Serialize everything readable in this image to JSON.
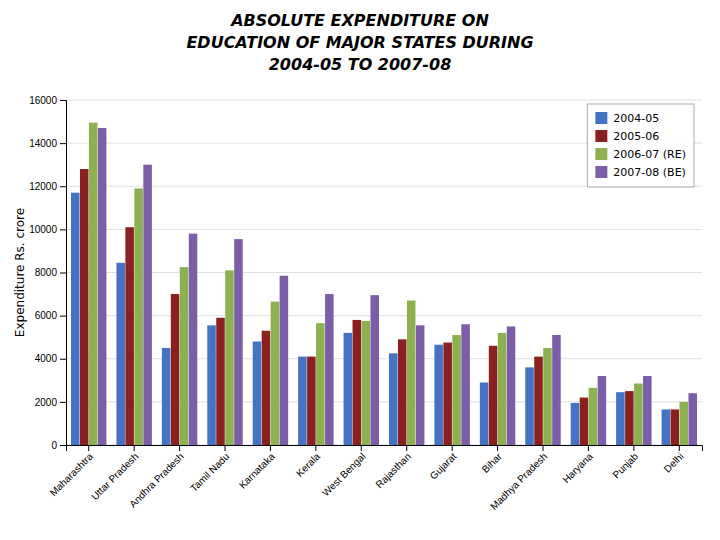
{
  "chart_data": {
    "type": "bar",
    "title": [
      "ABSOLUTE EXPENDITURE ON",
      "EDUCATION OF MAJOR STATES DURING",
      "2004-05 TO 2007-08"
    ],
    "ylabel": "Expenditure Rs. crore",
    "categories": [
      "Maharashtra",
      "Uttar Pradesh",
      "Andhra Pradesh",
      "Tamil Nadu",
      "Karnataka",
      "Kerala",
      "West Bengal",
      "Rajasthan",
      "Gujarat",
      "Bihar",
      "Madhya Pradesh",
      "Haryana",
      "Punjab",
      "Delhi"
    ],
    "series": [
      {
        "name": "2004-05",
        "color": "#4472C4",
        "values": [
          11700,
          8450,
          4500,
          5550,
          4800,
          4100,
          5200,
          4250,
          4650,
          2900,
          3600,
          1950,
          2450,
          1650
        ]
      },
      {
        "name": "2005-06",
        "color": "#8B2020",
        "values": [
          12800,
          10100,
          7000,
          5900,
          5300,
          4100,
          5800,
          4900,
          4750,
          4600,
          4100,
          2200,
          2500,
          1650
        ]
      },
      {
        "name": "2006-07 (RE)",
        "color": "#8DB050",
        "values": [
          14950,
          11900,
          8250,
          8100,
          6650,
          5650,
          5750,
          6700,
          5100,
          5200,
          4500,
          2650,
          2850,
          2000
        ]
      },
      {
        "name": "2007-08  (BE)",
        "color": "#7B5EA7",
        "values": [
          14700,
          13000,
          9800,
          9550,
          7850,
          7000,
          6950,
          5550,
          5600,
          5500,
          5100,
          3200,
          3200,
          2400
        ]
      }
    ],
    "ylim": [
      0,
      16000
    ],
    "yticks": [
      0,
      2000,
      4000,
      6000,
      8000,
      10000,
      12000,
      14000,
      16000
    ],
    "grid": true,
    "legend": "upper right"
  }
}
